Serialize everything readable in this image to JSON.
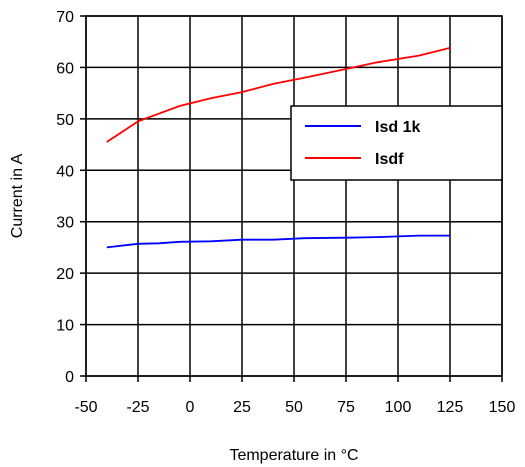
{
  "chart_data": {
    "type": "line",
    "title": "",
    "xlabel": "Temperature in °C",
    "ylabel": "Current in A",
    "xlim": [
      -50,
      150
    ],
    "ylim": [
      0,
      70
    ],
    "xticks": [
      "-50",
      "-25",
      "0",
      "25",
      "50",
      "75",
      "100",
      "125",
      "150"
    ],
    "yticks": [
      "0",
      "10",
      "20",
      "30",
      "40",
      "50",
      "60",
      "70"
    ],
    "grid": true,
    "legend_position": "right",
    "series": [
      {
        "name": "Isd 1k",
        "color": "#0000ff",
        "x": [
          -40,
          -25,
          -15,
          -5,
          10,
          25,
          40,
          55,
          75,
          90,
          110,
          125
        ],
        "y": [
          25,
          25.7,
          25.8,
          26.1,
          26.2,
          26.5,
          26.5,
          26.8,
          26.9,
          27.0,
          27.3,
          27.3
        ]
      },
      {
        "name": "Isdf",
        "color": "#ff0000",
        "x": [
          -40,
          -25,
          -15,
          -5,
          10,
          25,
          40,
          55,
          75,
          90,
          110,
          125
        ],
        "y": [
          45.5,
          49.5,
          51,
          52.5,
          54,
          55.2,
          56.8,
          58,
          59.7,
          61,
          62.3,
          63.8
        ]
      }
    ]
  }
}
